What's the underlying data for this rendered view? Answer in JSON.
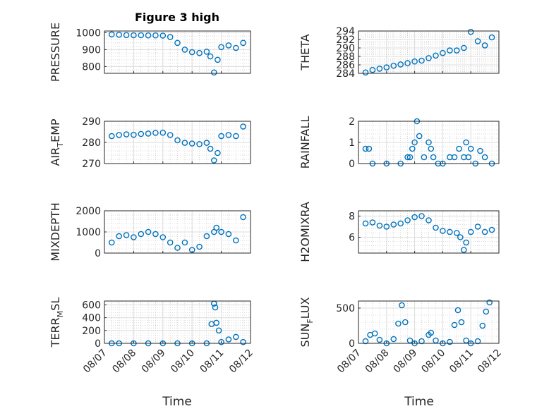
{
  "figure_title": "Figure 3 high",
  "colors": {
    "series": "#0072BD",
    "axis": "#262626"
  },
  "chart_data": [
    {
      "type": "scatter",
      "ylabel": "PRESSURE",
      "ylim": [
        760,
        1010
      ],
      "yticks": [
        800,
        900,
        1000
      ],
      "x": [
        "08/07 06:00",
        "08/07 12:00",
        "08/07 18:00",
        "08/08 00:00",
        "08/08 06:00",
        "08/08 12:00",
        "08/08 18:00",
        "08/09 00:00",
        "08/09 06:00",
        "08/09 12:00",
        "08/09 18:00",
        "08/10 00:00",
        "08/10 06:00",
        "08/10 12:00",
        "08/10 15:00",
        "08/10 18:00",
        "08/10 21:00",
        "08/11 00:00",
        "08/11 06:00",
        "08/11 12:00",
        "08/11 18:00"
      ],
      "y": [
        990,
        988,
        986,
        985,
        985,
        984,
        984,
        983,
        975,
        940,
        900,
        885,
        880,
        888,
        860,
        765,
        840,
        915,
        925,
        910,
        940
      ]
    },
    {
      "type": "scatter",
      "ylabel": "THETA",
      "ylim": [
        284,
        294
      ],
      "yticks": [
        284,
        286,
        288,
        290,
        292,
        294
      ],
      "x": [
        "08/07 06:00",
        "08/07 12:00",
        "08/07 18:00",
        "08/08 00:00",
        "08/08 06:00",
        "08/08 12:00",
        "08/08 18:00",
        "08/09 00:00",
        "08/09 06:00",
        "08/09 12:00",
        "08/09 18:00",
        "08/10 00:00",
        "08/10 06:00",
        "08/10 12:00",
        "08/10 18:00",
        "08/11 00:00",
        "08/11 06:00",
        "08/11 12:00",
        "08/11 18:00"
      ],
      "y": [
        284.2,
        284.8,
        285.1,
        285.4,
        285.8,
        286.1,
        286.4,
        286.8,
        287.0,
        287.6,
        288.2,
        288.8,
        289.4,
        289.4,
        290.0,
        293.8,
        291.6,
        290.6,
        292.5
      ]
    },
    {
      "type": "scatter",
      "ylabel": "AIR",
      "ylabel_sub": "T",
      "ylabel_rest": "EMP",
      "ylim": [
        270,
        290
      ],
      "yticks": [
        270,
        280,
        290
      ],
      "x": [
        "08/07 06:00",
        "08/07 12:00",
        "08/07 18:00",
        "08/08 00:00",
        "08/08 06:00",
        "08/08 12:00",
        "08/08 18:00",
        "08/09 00:00",
        "08/09 06:00",
        "08/09 12:00",
        "08/09 18:00",
        "08/10 00:00",
        "08/10 06:00",
        "08/10 12:00",
        "08/10 15:00",
        "08/10 18:00",
        "08/10 21:00",
        "08/11 00:00",
        "08/11 06:00",
        "08/11 12:00",
        "08/11 18:00"
      ],
      "y": [
        283,
        283.5,
        283.8,
        283.6,
        284.0,
        284.2,
        284.5,
        284.6,
        283.5,
        281.0,
        279.8,
        279.5,
        279.2,
        279.8,
        277.0,
        271.5,
        275.0,
        283.0,
        283.5,
        283.0,
        287.5
      ]
    },
    {
      "type": "scatter",
      "ylabel": "RAINFALL",
      "ylim": [
        0,
        2
      ],
      "yticks": [
        0,
        1,
        2
      ],
      "x": [
        "08/07 06:00",
        "08/07 09:00",
        "08/07 12:00",
        "08/08 00:00",
        "08/08 12:00",
        "08/08 18:00",
        "08/08 20:00",
        "08/08 22:00",
        "08/09 00:00",
        "08/09 02:00",
        "08/09 04:00",
        "08/09 08:00",
        "08/09 12:00",
        "08/09 14:00",
        "08/09 16:00",
        "08/09 20:00",
        "08/10 00:00",
        "08/10 06:00",
        "08/10 10:00",
        "08/10 14:00",
        "08/10 18:00",
        "08/10 20:00",
        "08/10 22:00",
        "08/11 00:00",
        "08/11 04:00",
        "08/11 08:00",
        "08/11 12:00",
        "08/11 18:00"
      ],
      "y": [
        0.7,
        0.7,
        0,
        0,
        0,
        0.3,
        0.3,
        0.7,
        1.0,
        2.0,
        1.3,
        0.3,
        1.0,
        0.7,
        0.3,
        0,
        0,
        0.3,
        0.3,
        0.7,
        0.3,
        1.0,
        0.3,
        0.7,
        0,
        0.6,
        0.3,
        0
      ]
    },
    {
      "type": "scatter",
      "ylabel": "MIXDEPTH",
      "ylim": [
        0,
        2000
      ],
      "yticks": [
        0,
        1000,
        2000
      ],
      "x": [
        "08/07 06:00",
        "08/07 12:00",
        "08/07 18:00",
        "08/08 00:00",
        "08/08 06:00",
        "08/08 12:00",
        "08/08 18:00",
        "08/09 00:00",
        "08/09 06:00",
        "08/09 12:00",
        "08/09 18:00",
        "08/10 00:00",
        "08/10 06:00",
        "08/10 12:00",
        "08/10 18:00",
        "08/10 20:00",
        "08/11 00:00",
        "08/11 06:00",
        "08/11 12:00",
        "08/11 18:00"
      ],
      "y": [
        500,
        800,
        850,
        750,
        900,
        1000,
        900,
        750,
        500,
        250,
        500,
        150,
        300,
        800,
        1000,
        1200,
        1000,
        900,
        600,
        1700
      ]
    },
    {
      "type": "scatter",
      "ylabel": "H2OMIXRA",
      "ylim": [
        4.5,
        8.5
      ],
      "yticks": [
        6,
        8
      ],
      "x": [
        "08/07 06:00",
        "08/07 12:00",
        "08/07 18:00",
        "08/08 00:00",
        "08/08 06:00",
        "08/08 12:00",
        "08/08 18:00",
        "08/09 00:00",
        "08/09 06:00",
        "08/09 12:00",
        "08/09 18:00",
        "08/10 00:00",
        "08/10 06:00",
        "08/10 12:00",
        "08/10 15:00",
        "08/10 18:00",
        "08/10 20:00",
        "08/11 00:00",
        "08/11 06:00",
        "08/11 12:00",
        "08/11 18:00"
      ],
      "y": [
        7.3,
        7.4,
        7.1,
        7.0,
        7.2,
        7.3,
        7.6,
        7.9,
        8.0,
        7.6,
        6.9,
        6.6,
        6.5,
        6.4,
        6.0,
        4.8,
        5.5,
        6.5,
        7.0,
        6.5,
        6.7
      ]
    },
    {
      "type": "scatter",
      "ylabel": "TERR",
      "ylabel_sub": "M",
      "ylabel_rest": "SL",
      "ylim": [
        0,
        660
      ],
      "yticks": [
        0,
        200,
        400,
        600
      ],
      "x": [
        "08/07 06:00",
        "08/07 12:00",
        "08/08 00:00",
        "08/08 12:00",
        "08/09 00:00",
        "08/09 12:00",
        "08/10 00:00",
        "08/10 12:00",
        "08/10 16:00",
        "08/10 18:00",
        "08/10 19:00",
        "08/10 20:00",
        "08/10 22:00",
        "08/11 00:00",
        "08/11 06:00",
        "08/11 12:00",
        "08/11 18:00"
      ],
      "y": [
        0,
        0,
        0,
        0,
        0,
        0,
        0,
        0,
        300,
        620,
        560,
        320,
        200,
        20,
        60,
        100,
        20
      ]
    },
    {
      "type": "scatter",
      "ylabel": "SUN",
      "ylabel_sub": "F",
      "ylabel_rest": "LUX",
      "ylim": [
        0,
        600
      ],
      "yticks": [
        0,
        500
      ],
      "x": [
        "08/07 06:00",
        "08/07 10:00",
        "08/07 14:00",
        "08/07 18:00",
        "08/08 00:00",
        "08/08 06:00",
        "08/08 10:00",
        "08/08 13:00",
        "08/08 16:00",
        "08/08 20:00",
        "08/09 00:00",
        "08/09 06:00",
        "08/09 12:00",
        "08/09 14:00",
        "08/09 18:00",
        "08/10 00:00",
        "08/10 06:00",
        "08/10 10:00",
        "08/10 13:00",
        "08/10 16:00",
        "08/10 20:00",
        "08/11 00:00",
        "08/11 06:00",
        "08/11 10:00",
        "08/11 13:00",
        "08/11 16:00"
      ],
      "y": [
        30,
        120,
        140,
        50,
        0,
        60,
        280,
        540,
        300,
        40,
        0,
        30,
        120,
        150,
        40,
        0,
        20,
        260,
        470,
        300,
        40,
        0,
        30,
        250,
        450,
        580
      ]
    }
  ],
  "shared_x": {
    "xlabel": "Time",
    "xlim": [
      "08/07 00:00",
      "08/12 00:00"
    ],
    "xticklabels": [
      "08/07",
      "08/08",
      "08/09",
      "08/10",
      "08/11",
      "08/12"
    ]
  }
}
